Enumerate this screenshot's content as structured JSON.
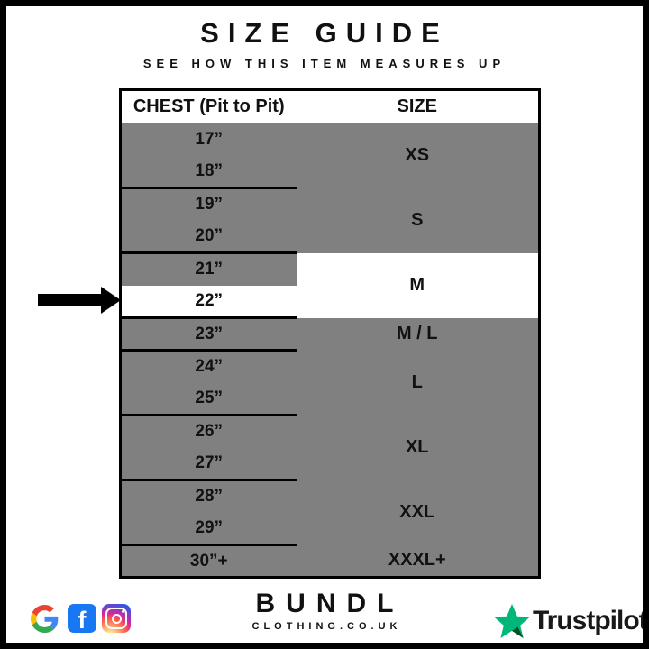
{
  "title": "SIZE GUIDE",
  "subtitle": "SEE HOW THIS ITEM MEASURES UP",
  "table": {
    "headers": {
      "chest": "CHEST (Pit to Pit)",
      "size": "SIZE"
    },
    "groups": [
      {
        "size": "XS",
        "chest": [
          "17”",
          "18”"
        ],
        "highlight": false
      },
      {
        "size": "S",
        "chest": [
          "19”",
          "20”"
        ],
        "highlight": false
      },
      {
        "size": "M",
        "chest": [
          "21”",
          "22”"
        ],
        "highlight": true,
        "highlight_chest": "22”"
      },
      {
        "size": "M / L",
        "chest": [
          "23”"
        ],
        "highlight": false
      },
      {
        "size": "L",
        "chest": [
          "24”",
          "25”"
        ],
        "highlight": false
      },
      {
        "size": "XL",
        "chest": [
          "26”",
          "27”"
        ],
        "highlight": false
      },
      {
        "size": "XXL",
        "chest": [
          "28”",
          "29”"
        ],
        "highlight": false
      },
      {
        "size": "XXXL+",
        "chest": [
          "30”+"
        ],
        "highlight": false
      }
    ],
    "colors": {
      "row_gray": "#808080",
      "highlight_row": "#ffffff",
      "border": "#000000"
    }
  },
  "arrow": {
    "points_to": "22”"
  },
  "footer": {
    "brand": {
      "name": "BUNDL",
      "domain": "CLOTHING.CO.UK"
    },
    "icons": [
      "google-icon",
      "facebook-icon",
      "instagram-icon"
    ],
    "facebook_letter": "f",
    "facebook_color": "#1877F2",
    "trustpilot": {
      "label": "Trustpilot",
      "star_color": "#00B67A",
      "star_shadow_color": "#005128"
    }
  }
}
